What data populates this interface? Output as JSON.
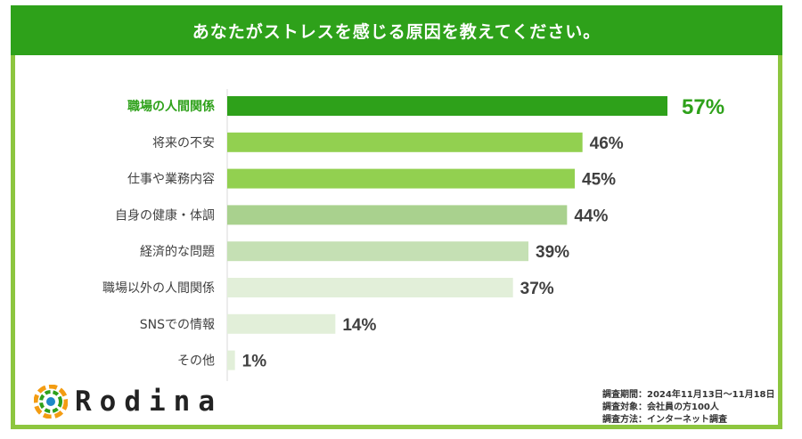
{
  "title": "あなたがストレスを感じる原因を教えてください。",
  "brand": "Rodina",
  "survey": {
    "period": "調査期間：2024年11月13日～11月18日",
    "target": "調査対象：会社員の方100人",
    "method": "調査方法：インターネット調査"
  },
  "colors": {
    "frame": "#8dc63f",
    "title_bg": "#2ea11a",
    "highlight_label": "#2ea11a"
  },
  "chart_data": {
    "type": "bar",
    "orientation": "horizontal",
    "categories": [
      "職場の人間関係",
      "将来の不安",
      "仕事や業務内容",
      "自身の健康・体調",
      "経済的な問題",
      "職場以外の人間関係",
      "SNSでの情報",
      "その他"
    ],
    "values": [
      57,
      46,
      45,
      44,
      39,
      37,
      14,
      1
    ],
    "value_labels": [
      "57%",
      "46%",
      "45%",
      "44%",
      "39%",
      "37%",
      "14%",
      "1%"
    ],
    "bar_colors": [
      "#2ea11a",
      "#92d050",
      "#92d050",
      "#a9d18e",
      "#c5e0b4",
      "#e2efd9",
      "#e2efd9",
      "#e2efd9"
    ],
    "xlim": [
      0,
      57
    ],
    "highlight_index": 0,
    "grid": false
  }
}
